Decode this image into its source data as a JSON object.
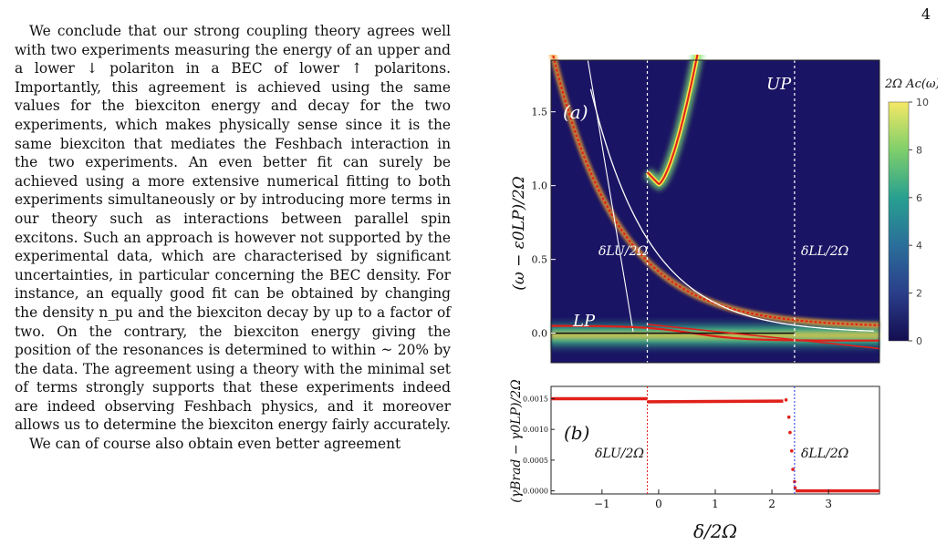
{
  "page_number": "4",
  "paragraphs": [
    "We conclude that our strong coupling theory agrees well with two experiments measuring the energy of an upper and a lower ↓ polariton in a BEC of lower ↑ polaritons. Importantly, this agreement is achieved using the same values for the biexciton energy and decay for the two experiments, which makes physically sense since it is the same biexciton that mediates the Feshbach interaction in the two experiments. An even better fit can surely be achieved using a more extensive numerical fitting to both experiments simultaneously or by introducing more terms in our theory such as interactions between parallel spin excitons. Such an approach is however not supported by the experimental data, which are characterised by significant uncertainties, in particular concerning the BEC density. For instance, an equally good fit can be obtained by changing the density n_pu and the biexciton decay by up to a factor of two. On the contrary, the biexciton energy giving the position of the resonances is determined to within ~ 20% by the data. The agreement using a theory with the minimal set of terms strongly supports that these experiments indeed are indeed observing Feshbach physics, and it moreover allows us to determine the biexciton energy fairly accurately.",
    "We can of course also obtain even better agreement"
  ],
  "figure": {
    "panel_a_label": "(a)",
    "panel_b_label": "(b)",
    "up_label": "UP",
    "lp_label": "LP",
    "delta_lu": "δLU/2Ω",
    "delta_ll": "δLL/2Ω",
    "ylabel_a": "(ω − ε0LP)/2Ω",
    "ylabel_b": "(γBrad − γ0LP)/2Ω",
    "xlabel": "δ/2Ω",
    "colorbar_label": "2Ω Ac(ω)",
    "colorbar_ticks": [
      "10",
      "8",
      "6",
      "4",
      "2",
      "0"
    ],
    "ya_ticks": [
      "1.5",
      "1.0",
      "0.5",
      "0.0"
    ],
    "yb_ticks": [
      "0.0015",
      "0.0010",
      "0.0005",
      "0.0000"
    ],
    "x_ticks": [
      "−1",
      "0",
      "1",
      "2",
      "3"
    ],
    "colors": {
      "bg": "#1a1464",
      "bright": "#f5e44a",
      "red": "#e0201a",
      "white": "#ffffff"
    }
  },
  "chart_data": {
    "type": "line",
    "xlabel": "δ/2Ω",
    "ylabel": "(ω − ε0LP)/2Ω",
    "xlim": [
      -1.9,
      3.9
    ],
    "ylim": [
      -0.2,
      1.85
    ],
    "vertical_lines": [
      -0.2,
      2.4
    ],
    "series_b": {
      "ylim": [
        -5e-05,
        0.0017
      ],
      "x": [
        -1.9,
        -0.2,
        -0.2,
        2.2,
        2.3,
        2.35,
        2.4,
        2.42,
        3.9
      ],
      "y": [
        0.0015,
        0.0015,
        0.00145,
        0.00146,
        0.00148,
        0.0011,
        0.0004,
        2e-05,
        0.0
      ]
    }
  }
}
